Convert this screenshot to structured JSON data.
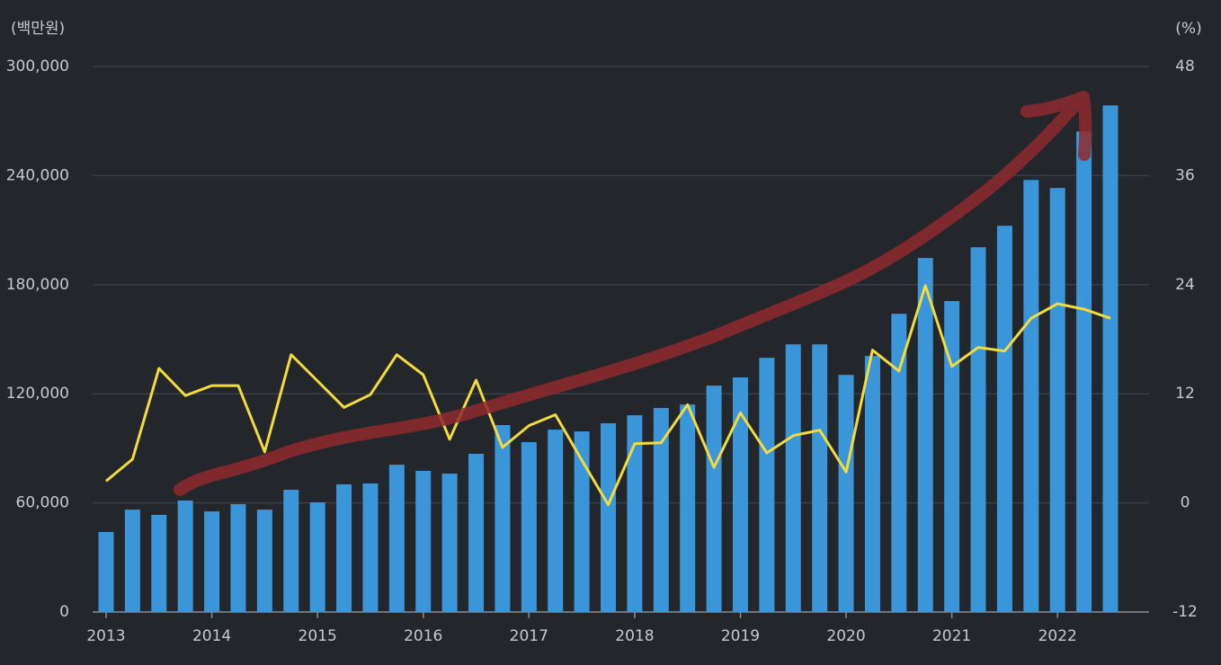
{
  "chart_data": {
    "type": "bar_line",
    "y_label": "(백만원)",
    "y2_label": "(%)",
    "categories": [
      "2013",
      null,
      null,
      null,
      "2014",
      null,
      null,
      null,
      "2015",
      null,
      null,
      null,
      "2016",
      null,
      null,
      null,
      "2017",
      null,
      null,
      null,
      "2018",
      null,
      null,
      null,
      "2019",
      null,
      null,
      null,
      "2020",
      null,
      null,
      null,
      "2021",
      null,
      null,
      null,
      "2022",
      null,
      null
    ],
    "series": [
      {
        "type": "bar",
        "axis": "y",
        "color": "#3a96d8",
        "values": [
          44000,
          56300,
          53400,
          61300,
          55300,
          59300,
          56300,
          67200,
          60300,
          70200,
          70700,
          81000,
          77600,
          76100,
          87000,
          102800,
          93400,
          100300,
          99300,
          103800,
          108200,
          112200,
          114100,
          124500,
          129000,
          139800,
          147200,
          147200,
          130400,
          140800,
          164000,
          194700,
          171000,
          200600,
          212400,
          237600,
          233200,
          264300,
          278600
        ]
      },
      {
        "type": "line",
        "axis": "y2",
        "color": "#f2db3e",
        "values": [
          2.4,
          4.8,
          14.8,
          11.8,
          12.9,
          12.9,
          5.6,
          16.3,
          13.4,
          10.5,
          11.9,
          16.3,
          14.1,
          7.0,
          13.5,
          6.1,
          8.5,
          9.7,
          4.7,
          -0.2,
          6.5,
          6.6,
          10.8,
          3.9,
          9.9,
          5.5,
          7.4,
          8.0,
          3.4,
          16.8,
          14.5,
          23.9,
          15.0,
          17.1,
          16.7,
          20.3,
          21.9,
          21.3,
          20.3
        ]
      }
    ],
    "ylim": [
      0,
      300000
    ],
    "yticks": [
      0,
      {
        "value": 60000,
        "label": "60,000"
      },
      {
        "value": 120000,
        "label": "120,000"
      },
      {
        "value": 180000,
        "label": "180,000"
      },
      {
        "value": 240000,
        "label": "240,000"
      },
      {
        "value": 300000,
        "label": "300,000"
      }
    ],
    "y2lim": [
      -12,
      48
    ],
    "y2ticks": [
      -12,
      0,
      12,
      24,
      36,
      48
    ],
    "grid": true
  }
}
